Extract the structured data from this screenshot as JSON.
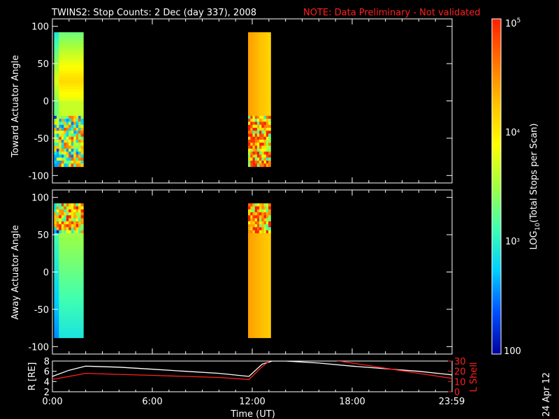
{
  "header": {
    "title": "TWINS2: Stop Counts:  2 Dec (day 337), 2008",
    "note": "NOTE: Data Preliminary - Not validated"
  },
  "side_date": "24 Apr 12",
  "colors": {
    "background": "#000000",
    "axes": "#ffffff",
    "note": "#ff2020",
    "r_line": "#ffffff",
    "lshell_line": "#ff2020",
    "colorscale": [
      "#0000a0",
      "#0050ff",
      "#00d0ff",
      "#40ffb0",
      "#a0ff40",
      "#ffff00",
      "#ffc000",
      "#ff7000",
      "#ff2000"
    ]
  },
  "chart_data": [
    {
      "type": "heatmap",
      "name": "toward",
      "ylabel": "Toward Actuator Angle",
      "ylim": [
        -110,
        110
      ],
      "yticks": [
        -100,
        -50,
        0,
        50,
        100
      ],
      "xlim": [
        0,
        24
      ],
      "data_blocks": [
        {
          "t_start": 0.1,
          "t_end": 1.85,
          "angle_min": -88,
          "angle_max": 92
        },
        {
          "t_start": 11.75,
          "t_end": 13.1,
          "angle_min": -88,
          "angle_max": 92
        }
      ]
    },
    {
      "type": "heatmap",
      "name": "away",
      "ylabel": "Away Actuator Angle",
      "ylim": [
        -110,
        110
      ],
      "yticks": [
        -100,
        -50,
        0,
        50,
        100
      ],
      "xlim": [
        0,
        24
      ],
      "data_blocks": [
        {
          "t_start": 0.1,
          "t_end": 1.85,
          "angle_min": -88,
          "angle_max": 92
        },
        {
          "t_start": 11.75,
          "t_end": 13.1,
          "angle_min": -88,
          "angle_max": 92
        }
      ]
    },
    {
      "type": "line",
      "name": "ephemeris",
      "ylabel_left": "R [RE]",
      "ylabel_right": "L Shell",
      "xlabel": "Time (UT)",
      "xlim": [
        0,
        24
      ],
      "xtick_labels": [
        "0:00",
        "6:00",
        "12:00",
        "18:00",
        "23:59"
      ],
      "xtick_hours": [
        0,
        6,
        12,
        18,
        23.98
      ],
      "ylim_left": [
        2,
        8
      ],
      "yticks_left": [
        2,
        4,
        6,
        8
      ],
      "ylim_right": [
        0,
        30
      ],
      "yticks_right": [
        0,
        10,
        20,
        30
      ],
      "series": [
        {
          "color": "#ffffff",
          "axis": "left",
          "x": [
            0,
            1,
            2,
            4,
            6,
            8,
            10,
            11.8,
            12.6,
            13.2,
            14,
            16,
            18,
            20,
            22,
            24
          ],
          "y": [
            5.0,
            6.2,
            7.0,
            6.8,
            6.4,
            6.0,
            5.6,
            5.0,
            7.4,
            8.0,
            8.0,
            7.6,
            7.0,
            6.5,
            6.0,
            5.3
          ]
        },
        {
          "color": "#ff2020",
          "axis": "right",
          "x": [
            0,
            1,
            2,
            4,
            6,
            8,
            10,
            11.8,
            12.5,
            13.3,
            14.5,
            16,
            18,
            20,
            22,
            24
          ],
          "y": [
            12,
            15,
            18,
            17,
            16,
            15,
            14,
            12,
            23,
            34,
            36,
            33,
            28,
            23,
            18,
            13
          ]
        }
      ]
    }
  ],
  "colorbar": {
    "label": "LOG10(Total Stops per Scan)",
    "label_base": "LOG",
    "label_sub": "10",
    "label_rest": "(Total Stops per Scan)",
    "tick_top_base": "10",
    "tick_top_exp": "5",
    "tick_mid_base": "10",
    "tick_mid_exp": "4",
    "tick_low_base": "10",
    "tick_low_exp": "3",
    "tick_bottom": "100",
    "range_log": [
      2,
      5
    ]
  }
}
